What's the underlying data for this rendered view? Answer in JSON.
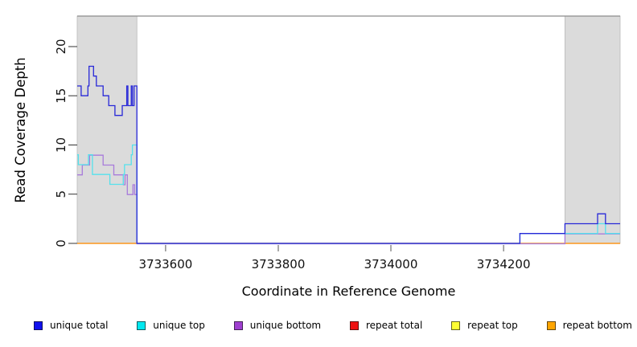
{
  "chart_data": {
    "type": "line",
    "subtype": "step-coverage",
    "title": "",
    "xlabel": "Coordinate in Reference Genome",
    "ylabel": "Read Coverage Depth",
    "xlim": [
      3733443,
      3734407
    ],
    "ylim": [
      0,
      23.1
    ],
    "x_ticks": [
      3733600,
      3733800,
      3734000,
      3734200
    ],
    "y_ticks": [
      0,
      5,
      10,
      15,
      20
    ],
    "grid": false,
    "legend_position": "bottom",
    "frame": {
      "top_border_color": "#8c8c8c",
      "band_fill": "#dbdbdb",
      "band_edge": "#b9b9b9"
    },
    "shaded_regions": [
      {
        "from": 3733443,
        "to": 3733549
      },
      {
        "from": 3734309,
        "to": 3734407
      }
    ],
    "series": [
      {
        "name": "unique total",
        "color": "#2828d8",
        "legend_color": "#1111ee",
        "steps": [
          [
            3733443,
            16
          ],
          [
            3733450,
            15
          ],
          [
            3733462,
            16
          ],
          [
            3733464,
            18
          ],
          [
            3733472,
            17
          ],
          [
            3733477,
            16
          ],
          [
            3733489,
            15
          ],
          [
            3733499,
            14
          ],
          [
            3733510,
            13
          ],
          [
            3733523,
            14
          ],
          [
            3733531,
            16
          ],
          [
            3733533,
            14
          ],
          [
            3733539,
            16
          ],
          [
            3733541,
            14
          ],
          [
            3733544,
            16
          ],
          [
            3733549,
            0
          ],
          [
            3734229,
            1
          ],
          [
            3734309,
            2
          ],
          [
            3734367,
            3
          ],
          [
            3734381,
            2
          ]
        ]
      },
      {
        "name": "unique top",
        "color": "#55e1ec",
        "legend_color": "#00e8f0",
        "steps": [
          [
            3733443,
            9
          ],
          [
            3733445,
            8
          ],
          [
            3733463,
            9
          ],
          [
            3733470,
            7
          ],
          [
            3733501,
            6
          ],
          [
            3733525,
            7
          ],
          [
            3733527,
            8
          ],
          [
            3733539,
            9
          ],
          [
            3733541,
            10
          ],
          [
            3733549,
            0
          ],
          [
            3734229,
            1
          ],
          [
            3734367,
            2
          ],
          [
            3734381,
            1
          ]
        ]
      },
      {
        "name": "unique bottom",
        "color": "#a87bdb",
        "legend_color": "#9f3fd0",
        "steps": [
          [
            3733443,
            7
          ],
          [
            3733452,
            8
          ],
          [
            3733465,
            9
          ],
          [
            3733489,
            8
          ],
          [
            3733508,
            7
          ],
          [
            3733525,
            6
          ],
          [
            3733528,
            7
          ],
          [
            3733532,
            5
          ],
          [
            3733542,
            6
          ],
          [
            3733545,
            5
          ],
          [
            3733549,
            0
          ],
          [
            3734309,
            1
          ]
        ]
      },
      {
        "name": "repeat total",
        "color": "#dd2222",
        "legend_color": "#ee1111",
        "steps": [
          [
            3733443,
            0
          ]
        ]
      },
      {
        "name": "repeat top",
        "color": "#eded2a",
        "legend_color": "#ffff33",
        "steps": [
          [
            3733443,
            0
          ]
        ]
      },
      {
        "name": "repeat bottom",
        "color": "#ffa429",
        "legend_color": "#ffa500",
        "steps": [
          [
            3733443,
            0
          ]
        ]
      }
    ],
    "draw_order": [
      "repeat top",
      "repeat total",
      "repeat bottom",
      "unique bottom",
      "unique top",
      "unique total"
    ]
  }
}
